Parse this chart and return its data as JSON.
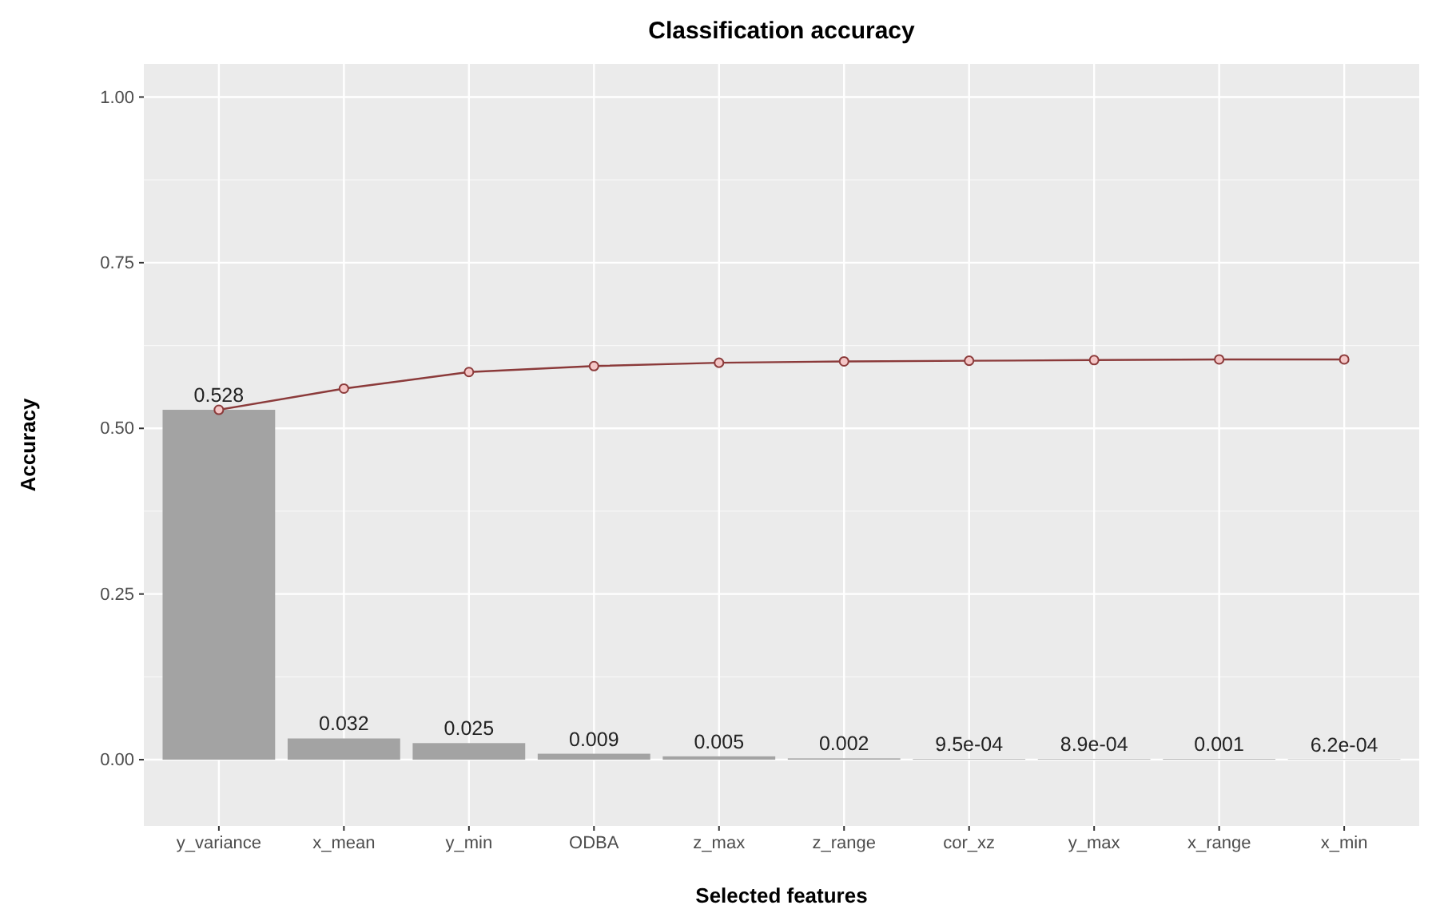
{
  "chart_data": {
    "type": "bar",
    "title": "Classification accuracy",
    "xlabel": "Selected features",
    "ylabel": "Accuracy",
    "categories": [
      "y_variance",
      "x_mean",
      "y_min",
      "ODBA",
      "z_max",
      "z_range",
      "cor_xz",
      "y_max",
      "x_range",
      "x_min"
    ],
    "series": [
      {
        "color": "#a3a3a3",
        "values": [
          0.528,
          0.032,
          0.025,
          0.009,
          0.005,
          0.002,
          0.00095,
          0.00089,
          0.001,
          0.00062
        ],
        "value_labels": [
          "0.528",
          "0.032",
          "0.025",
          "0.009",
          "0.005",
          "0.002",
          "9.5e-04",
          "8.9e-04",
          "0.001",
          "6.2e-04"
        ]
      },
      {
        "type": "line",
        "color": "#8b3a3a",
        "values": [
          0.528,
          0.56,
          0.585,
          0.594,
          0.599,
          0.601,
          0.602,
          0.603,
          0.604,
          0.604
        ],
        "marker": "circle"
      }
    ],
    "ylim": [
      -0.1,
      1.05
    ],
    "yticks": [
      {
        "value": 0,
        "label": "0.00"
      },
      {
        "value": 0.25,
        "label": "0.25"
      },
      {
        "value": 0.5,
        "label": "0.50"
      },
      {
        "value": 0.75,
        "label": "0.75"
      },
      {
        "value": 1,
        "label": "1.00"
      }
    ],
    "grid": true
  }
}
